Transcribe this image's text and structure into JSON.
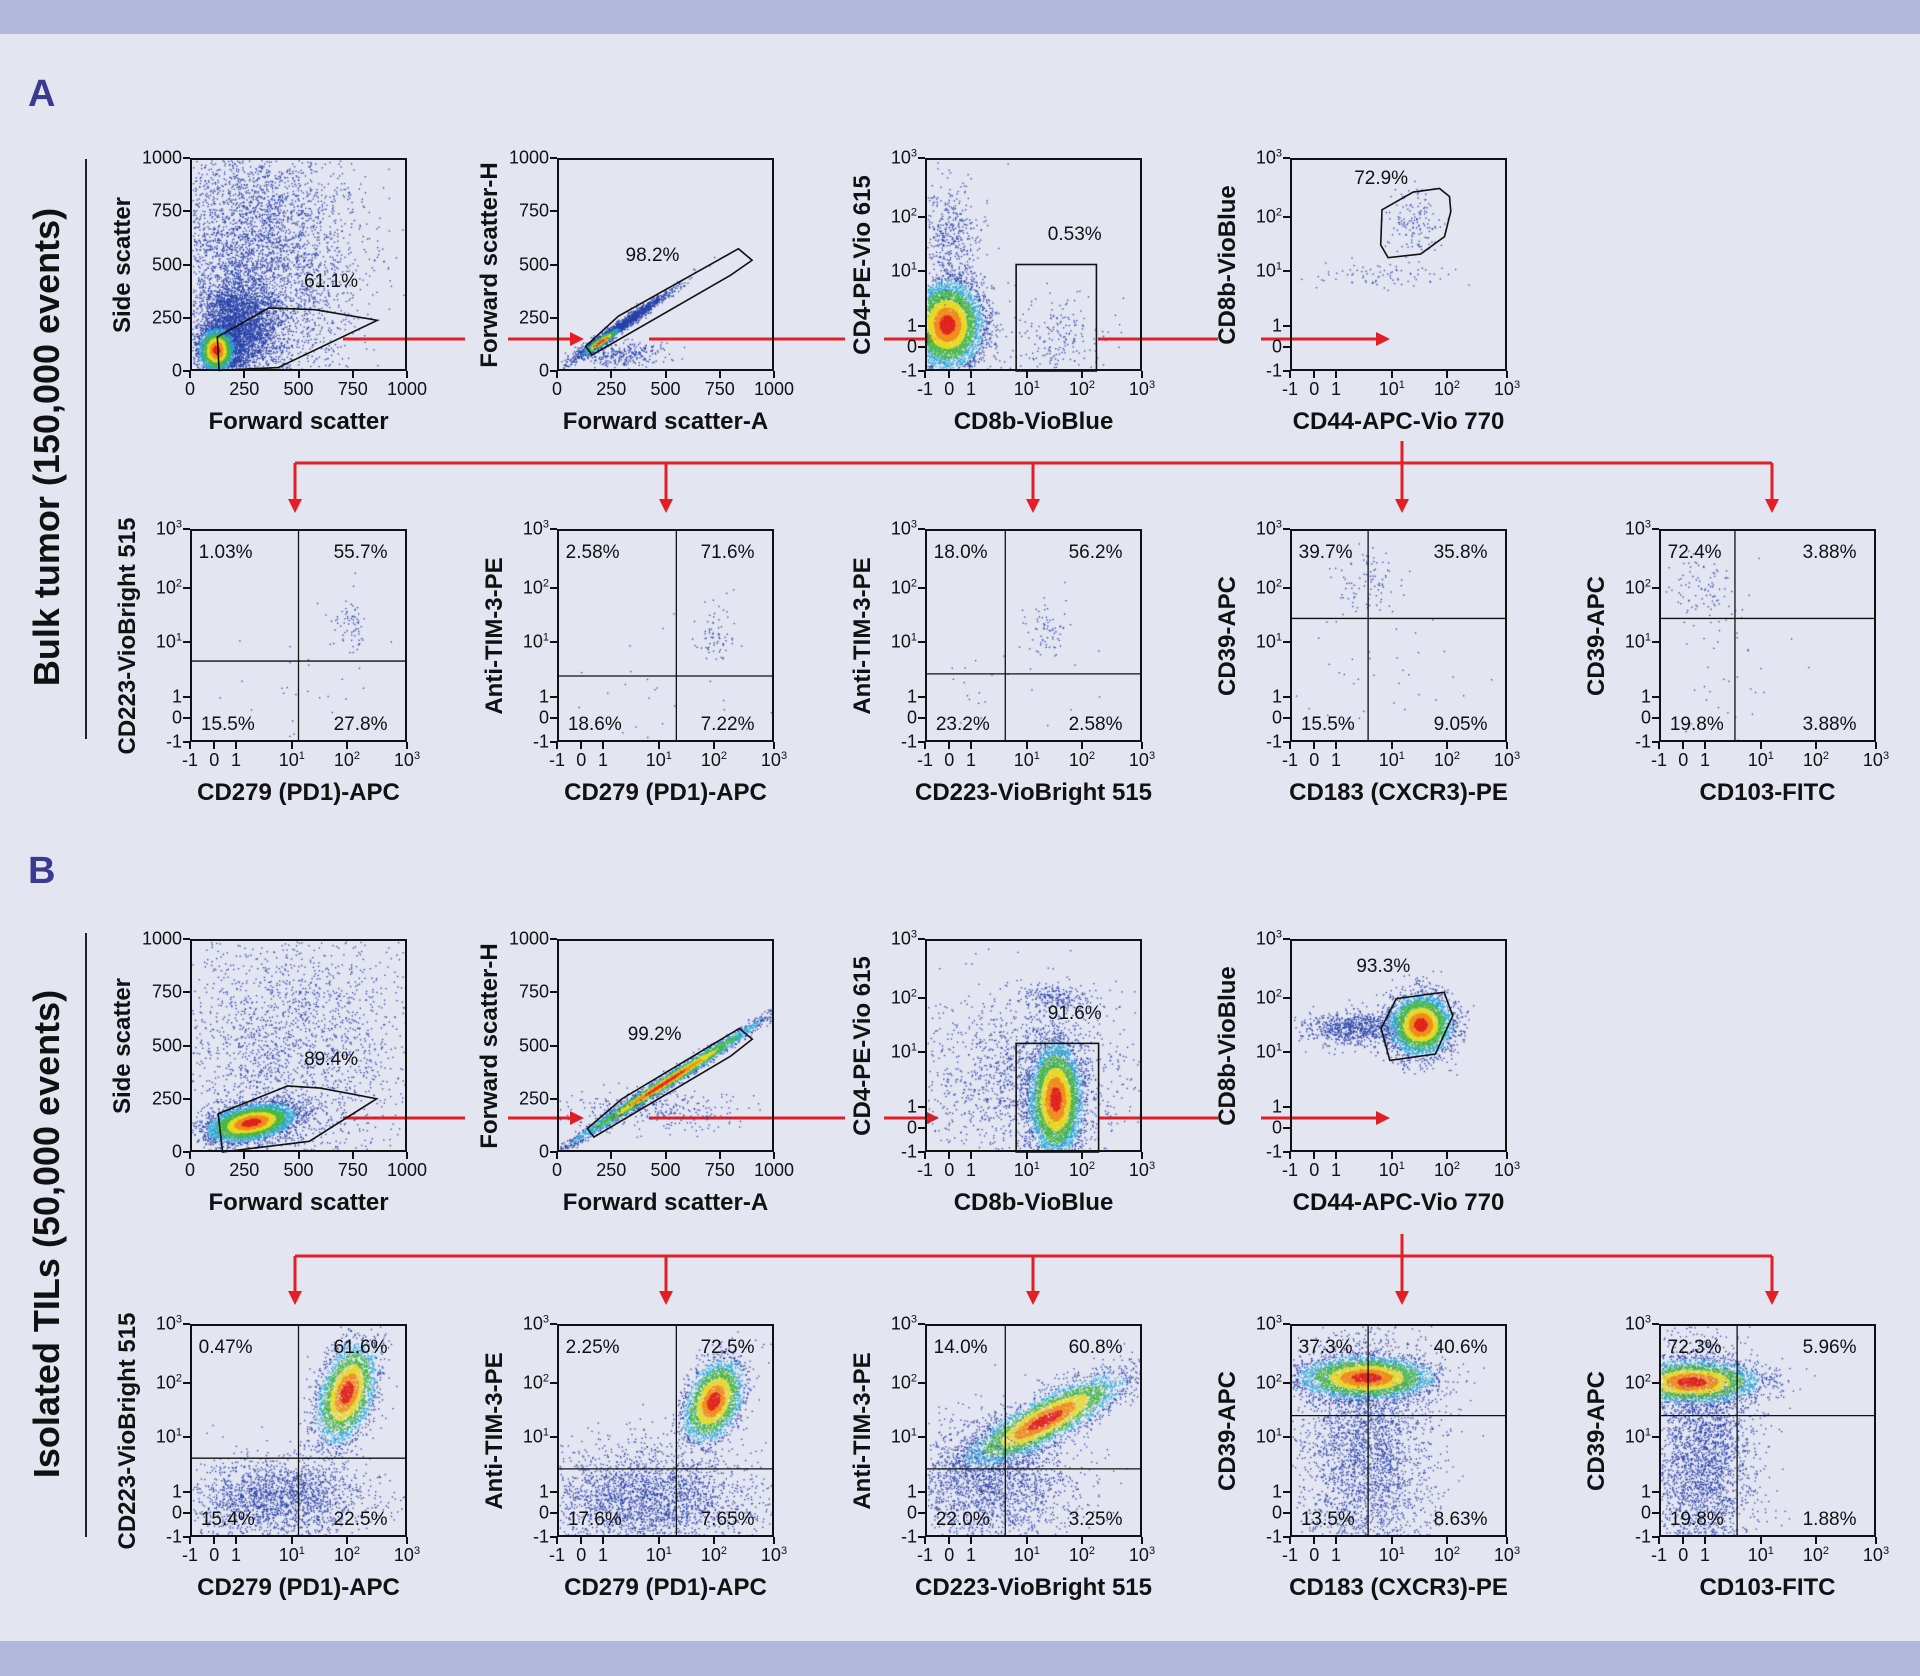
{
  "panels": [
    {
      "letter": "A",
      "row_label": "Bulk tumor (150,000 events)"
    },
    {
      "letter": "B",
      "row_label": "Isolated TILs (50,000 events)"
    }
  ],
  "colors": {
    "arrow": "#e31e24",
    "panel_letter": "#3a3a8e",
    "band": "#b2b7dc",
    "background": "#e3e5f1"
  },
  "chart_data": [
    {
      "panel": "A",
      "type": "scatter",
      "xlabel": "Forward scatter",
      "ylabel": "Side scatter",
      "xscale": "linear",
      "yscale": "linear",
      "xticks": [
        "0",
        "250",
        "500",
        "750",
        "1000"
      ],
      "yticks": [
        "0",
        "250",
        "500",
        "750",
        "1000"
      ],
      "xlim": [
        0,
        1000
      ],
      "ylim": [
        0,
        1000
      ],
      "gate": "polygon",
      "gate_pct": [
        "61.1%"
      ]
    },
    {
      "panel": "A",
      "type": "scatter",
      "xlabel": "Forward scatter-A",
      "ylabel": "Forward scatter-H",
      "xscale": "linear",
      "yscale": "linear",
      "xticks": [
        "0",
        "250",
        "500",
        "750",
        "1000"
      ],
      "yticks": [
        "0",
        "250",
        "500",
        "750",
        "1000"
      ],
      "xlim": [
        0,
        1000
      ],
      "ylim": [
        0,
        1000
      ],
      "gate": "polygon",
      "gate_pct": [
        "98.2%"
      ]
    },
    {
      "panel": "A",
      "type": "scatter",
      "xlabel": "CD8b-VioBlue",
      "ylabel": "CD4-PE-Vio 615",
      "xscale": "biexponential",
      "yscale": "biexponential",
      "xticks": [
        "-1",
        "0",
        "1",
        "10^1",
        "10^2",
        "10^3"
      ],
      "yticks": [
        "-1",
        "0",
        "1",
        "10^1",
        "10^2",
        "10^3"
      ],
      "gate": "rectangle",
      "gate_pct": [
        "0.53%"
      ]
    },
    {
      "panel": "A",
      "type": "scatter",
      "xlabel": "CD44-APC-Vio 770",
      "ylabel": "CD8b-VioBlue",
      "xscale": "biexponential",
      "yscale": "biexponential",
      "xticks": [
        "-1",
        "0",
        "1",
        "10^1",
        "10^2",
        "10^3"
      ],
      "yticks": [
        "-1",
        "0",
        "1",
        "10^1",
        "10^2",
        "10^3"
      ],
      "gate": "polygon",
      "gate_pct": [
        "72.9%"
      ]
    },
    {
      "panel": "A",
      "type": "scatter",
      "xlabel": "CD279 (PD1)-APC",
      "ylabel": "CD223-VioBright 515",
      "xscale": "biexponential",
      "yscale": "biexponential",
      "xticks": [
        "-1",
        "0",
        "1",
        "10^1",
        "10^2",
        "10^3"
      ],
      "yticks": [
        "-1",
        "0",
        "1",
        "10^1",
        "10^2",
        "10^3"
      ],
      "gate": "quadrant",
      "quadrants": {
        "top_left": "1.03%",
        "top_right": "55.7%",
        "bottom_left": "15.5%",
        "bottom_right": "27.8%"
      }
    },
    {
      "panel": "A",
      "type": "scatter",
      "xlabel": "CD279 (PD1)-APC",
      "ylabel": "Anti-TIM-3-PE",
      "xscale": "biexponential",
      "yscale": "biexponential",
      "xticks": [
        "-1",
        "0",
        "1",
        "10^1",
        "10^2",
        "10^3"
      ],
      "yticks": [
        "-1",
        "0",
        "1",
        "10^1",
        "10^2",
        "10^3"
      ],
      "gate": "quadrant",
      "quadrants": {
        "top_left": "2.58%",
        "top_right": "71.6%",
        "bottom_left": "18.6%",
        "bottom_right": "7.22%"
      }
    },
    {
      "panel": "A",
      "type": "scatter",
      "xlabel": "CD223-VioBright 515",
      "ylabel": "Anti-TIM-3-PE",
      "xscale": "biexponential",
      "yscale": "biexponential",
      "xticks": [
        "-1",
        "0",
        "1",
        "10^1",
        "10^2",
        "10^3"
      ],
      "yticks": [
        "-1",
        "0",
        "1",
        "10^1",
        "10^2",
        "10^3"
      ],
      "gate": "quadrant",
      "quadrants": {
        "top_left": "18.0%",
        "top_right": "56.2%",
        "bottom_left": "23.2%",
        "bottom_right": "2.58%"
      }
    },
    {
      "panel": "A",
      "type": "scatter",
      "xlabel": "CD183 (CXCR3)-PE",
      "ylabel": "CD39-APC",
      "xscale": "biexponential",
      "yscale": "biexponential",
      "xticks": [
        "-1",
        "0",
        "1",
        "10^1",
        "10^2",
        "10^3"
      ],
      "yticks": [
        "-1",
        "0",
        "1",
        "10^1",
        "10^2",
        "10^3"
      ],
      "gate": "quadrant",
      "quadrants": {
        "top_left": "39.7%",
        "top_right": "35.8%",
        "bottom_left": "15.5%",
        "bottom_right": "9.05%"
      }
    },
    {
      "panel": "A",
      "type": "scatter",
      "xlabel": "CD103-FITC",
      "ylabel": "CD39-APC",
      "xscale": "biexponential",
      "yscale": "biexponential",
      "xticks": [
        "-1",
        "0",
        "1",
        "10^1",
        "10^2",
        "10^3"
      ],
      "yticks": [
        "-1",
        "0",
        "1",
        "10^1",
        "10^2",
        "10^3"
      ],
      "gate": "quadrant",
      "quadrants": {
        "top_left": "72.4%",
        "top_right": "3.88%",
        "bottom_left": "19.8%",
        "bottom_right": "3.88%"
      }
    },
    {
      "panel": "B",
      "type": "scatter",
      "xlabel": "Forward scatter",
      "ylabel": "Side scatter",
      "xscale": "linear",
      "yscale": "linear",
      "xticks": [
        "0",
        "250",
        "500",
        "750",
        "1000"
      ],
      "yticks": [
        "0",
        "250",
        "500",
        "750",
        "1000"
      ],
      "xlim": [
        0,
        1000
      ],
      "ylim": [
        0,
        1000
      ],
      "gate": "polygon",
      "gate_pct": [
        "89.4%"
      ]
    },
    {
      "panel": "B",
      "type": "scatter",
      "xlabel": "Forward scatter-A",
      "ylabel": "Forward scatter-H",
      "xscale": "linear",
      "yscale": "linear",
      "xticks": [
        "0",
        "250",
        "500",
        "750",
        "1000"
      ],
      "yticks": [
        "0",
        "250",
        "500",
        "750",
        "1000"
      ],
      "xlim": [
        0,
        1000
      ],
      "ylim": [
        0,
        1000
      ],
      "gate": "polygon",
      "gate_pct": [
        "99.2%"
      ]
    },
    {
      "panel": "B",
      "type": "scatter",
      "xlabel": "CD8b-VioBlue",
      "ylabel": "CD4-PE-Vio 615",
      "xscale": "biexponential",
      "yscale": "biexponential",
      "xticks": [
        "-1",
        "0",
        "1",
        "10^1",
        "10^2",
        "10^3"
      ],
      "yticks": [
        "-1",
        "0",
        "1",
        "10^1",
        "10^2",
        "10^3"
      ],
      "gate": "rectangle",
      "gate_pct": [
        "91.6%"
      ]
    },
    {
      "panel": "B",
      "type": "scatter",
      "xlabel": "CD44-APC-Vio 770",
      "ylabel": "CD8b-VioBlue",
      "xscale": "biexponential",
      "yscale": "biexponential",
      "xticks": [
        "-1",
        "0",
        "1",
        "10^1",
        "10^2",
        "10^3"
      ],
      "yticks": [
        "-1",
        "0",
        "1",
        "10^1",
        "10^2",
        "10^3"
      ],
      "gate": "polygon",
      "gate_pct": [
        "93.3%"
      ]
    },
    {
      "panel": "B",
      "type": "scatter",
      "xlabel": "CD279 (PD1)-APC",
      "ylabel": "CD223-VioBright 515",
      "xscale": "biexponential",
      "yscale": "biexponential",
      "xticks": [
        "-1",
        "0",
        "1",
        "10^1",
        "10^2",
        "10^3"
      ],
      "yticks": [
        "-1",
        "0",
        "1",
        "10^1",
        "10^2",
        "10^3"
      ],
      "gate": "quadrant",
      "quadrants": {
        "top_left": "0.47%",
        "top_right": "61.6%",
        "bottom_left": "15.4%",
        "bottom_right": "22.5%"
      }
    },
    {
      "panel": "B",
      "type": "scatter",
      "xlabel": "CD279 (PD1)-APC",
      "ylabel": "Anti-TIM-3-PE",
      "xscale": "biexponential",
      "yscale": "biexponential",
      "xticks": [
        "-1",
        "0",
        "1",
        "10^1",
        "10^2",
        "10^3"
      ],
      "yticks": [
        "-1",
        "0",
        "1",
        "10^1",
        "10^2",
        "10^3"
      ],
      "gate": "quadrant",
      "quadrants": {
        "top_left": "2.25%",
        "top_right": "72.5%",
        "bottom_left": "17.6%",
        "bottom_right": "7.65%"
      }
    },
    {
      "panel": "B",
      "type": "scatter",
      "xlabel": "CD223-VioBright 515",
      "ylabel": "Anti-TIM-3-PE",
      "xscale": "biexponential",
      "yscale": "biexponential",
      "xticks": [
        "-1",
        "0",
        "1",
        "10^1",
        "10^2",
        "10^3"
      ],
      "yticks": [
        "-1",
        "0",
        "1",
        "10^1",
        "10^2",
        "10^3"
      ],
      "gate": "quadrant",
      "quadrants": {
        "top_left": "14.0%",
        "top_right": "60.8%",
        "bottom_left": "22.0%",
        "bottom_right": "3.25%"
      }
    },
    {
      "panel": "B",
      "type": "scatter",
      "xlabel": "CD183 (CXCR3)-PE",
      "ylabel": "CD39-APC",
      "xscale": "biexponential",
      "yscale": "biexponential",
      "xticks": [
        "-1",
        "0",
        "1",
        "10^1",
        "10^2",
        "10^3"
      ],
      "yticks": [
        "-1",
        "0",
        "1",
        "10^1",
        "10^2",
        "10^3"
      ],
      "gate": "quadrant",
      "quadrants": {
        "top_left": "37.3%",
        "top_right": "40.6%",
        "bottom_left": "13.5%",
        "bottom_right": "8.63%"
      }
    },
    {
      "panel": "B",
      "type": "scatter",
      "xlabel": "CD103-FITC",
      "ylabel": "CD39-APC",
      "xscale": "biexponential",
      "yscale": "biexponential",
      "xticks": [
        "-1",
        "0",
        "1",
        "10^1",
        "10^2",
        "10^3"
      ],
      "yticks": [
        "-1",
        "0",
        "1",
        "10^1",
        "10^2",
        "10^3"
      ],
      "gate": "quadrant",
      "quadrants": {
        "top_left": "72.3%",
        "top_right": "5.96%",
        "bottom_left": "19.8%",
        "bottom_right": "1.88%"
      }
    }
  ]
}
